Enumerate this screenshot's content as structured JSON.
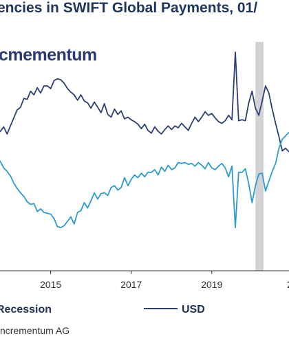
{
  "header": {
    "title": "encies in SWIFT Global Payments, 01/",
    "logo_text": "cmementum"
  },
  "footer": {
    "source": "ncrementum AG"
  },
  "colors": {
    "usd": "#2b3f73",
    "eur": "#2b9bd0",
    "recession": "#d3d3d6",
    "axis": "#333333",
    "title": "#1f3560"
  },
  "chart_data": {
    "type": "line",
    "title": "",
    "xlabel": "",
    "ylabel": "",
    "x_ticks": [
      "2015",
      "2017",
      "2019",
      "20"
    ],
    "xlim": [
      "2013-06",
      "2020-12"
    ],
    "ylim": [
      25,
      50
    ],
    "grid": false,
    "legend": [
      {
        "label": "Recession",
        "kind": "band"
      },
      {
        "label": "USD",
        "kind": "line"
      }
    ],
    "recession": {
      "start": "2020-02",
      "end": "2020-04"
    },
    "series": [
      {
        "name": "USD",
        "x": [
          "2013-06",
          "2013-07",
          "2013-08",
          "2013-09",
          "2013-10",
          "2013-11",
          "2013-12",
          "2014-01",
          "2014-02",
          "2014-03",
          "2014-04",
          "2014-05",
          "2014-06",
          "2014-07",
          "2014-08",
          "2014-09",
          "2014-10",
          "2014-11",
          "2014-12",
          "2015-01",
          "2015-02",
          "2015-03",
          "2015-04",
          "2015-05",
          "2015-06",
          "2015-07",
          "2015-08",
          "2015-09",
          "2015-10",
          "2015-11",
          "2015-12",
          "2016-01",
          "2016-02",
          "2016-03",
          "2016-04",
          "2016-05",
          "2016-06",
          "2016-07",
          "2016-08",
          "2016-09",
          "2016-10",
          "2016-11",
          "2016-12",
          "2017-01",
          "2017-02",
          "2017-03",
          "2017-04",
          "2017-05",
          "2017-06",
          "2017-07",
          "2017-08",
          "2017-09",
          "2017-10",
          "2017-11",
          "2017-12",
          "2018-01",
          "2018-02",
          "2018-03",
          "2018-04",
          "2018-05",
          "2018-06",
          "2018-07",
          "2018-08",
          "2018-09",
          "2018-10",
          "2018-11",
          "2018-12",
          "2019-01",
          "2019-02",
          "2019-03",
          "2019-04",
          "2019-05",
          "2019-06",
          "2019-07",
          "2019-08",
          "2019-09",
          "2019-10",
          "2019-11",
          "2019-12",
          "2020-01",
          "2020-02",
          "2020-03",
          "2020-04",
          "2020-05",
          "2020-06",
          "2020-07",
          "2020-08",
          "2020-09",
          "2020-10",
          "2020-11",
          "2020-12"
        ],
        "values": [
          39.2,
          39.5,
          38.9,
          40.2,
          40.5,
          41.0,
          40.2,
          41.1,
          42.0,
          42.9,
          43.2,
          44.2,
          44.1,
          45.0,
          44.6,
          45.4,
          44.8,
          45.6,
          45.6,
          45.3,
          46.2,
          46.4,
          46.3,
          45.9,
          45.3,
          44.9,
          44.6,
          44.0,
          44.6,
          43.9,
          43.7,
          43.1,
          43.8,
          43.2,
          42.6,
          43.6,
          42.4,
          42.1,
          43.0,
          42.4,
          42.8,
          41.9,
          42.1,
          41.8,
          41.6,
          41.3,
          40.8,
          41.3,
          40.6,
          40.3,
          41.0,
          40.5,
          40.2,
          40.7,
          41.1,
          40.7,
          41.1,
          40.9,
          41.4,
          41.0,
          40.6,
          41.4,
          42.1,
          41.6,
          42.1,
          42.7,
          42.3,
          42.5,
          42.0,
          41.6,
          41.4,
          41.7,
          42.3,
          41.8,
          49.4,
          41.7,
          41.8,
          41.7,
          43.7,
          45.0,
          43.1,
          42.3,
          43.9,
          45.6,
          44.8,
          43.0,
          41.4,
          39.9,
          38.3,
          38.6,
          38.2
        ]
      },
      {
        "name": "",
        "x": [
          "2013-06",
          "2013-07",
          "2013-08",
          "2013-09",
          "2013-10",
          "2013-11",
          "2013-12",
          "2014-01",
          "2014-02",
          "2014-03",
          "2014-04",
          "2014-05",
          "2014-06",
          "2014-07",
          "2014-08",
          "2014-09",
          "2014-10",
          "2014-11",
          "2014-12",
          "2015-01",
          "2015-02",
          "2015-03",
          "2015-04",
          "2015-05",
          "2015-06",
          "2015-07",
          "2015-08",
          "2015-09",
          "2015-10",
          "2015-11",
          "2015-12",
          "2016-01",
          "2016-02",
          "2016-03",
          "2016-04",
          "2016-05",
          "2016-06",
          "2016-07",
          "2016-08",
          "2016-09",
          "2016-10",
          "2016-11",
          "2016-12",
          "2017-01",
          "2017-02",
          "2017-03",
          "2017-04",
          "2017-05",
          "2017-06",
          "2017-07",
          "2017-08",
          "2017-09",
          "2017-10",
          "2017-11",
          "2017-12",
          "2018-01",
          "2018-02",
          "2018-03",
          "2018-04",
          "2018-05",
          "2018-06",
          "2018-07",
          "2018-08",
          "2018-09",
          "2018-10",
          "2018-11",
          "2018-12",
          "2019-01",
          "2019-02",
          "2019-03",
          "2019-04",
          "2019-05",
          "2019-06",
          "2019-07",
          "2019-08",
          "2019-09",
          "2019-10",
          "2019-11",
          "2019-12",
          "2020-01",
          "2020-02",
          "2020-03",
          "2020-04",
          "2020-05",
          "2020-06",
          "2020-07",
          "2020-08",
          "2020-09",
          "2020-10",
          "2020-11",
          "2020-12"
        ],
        "values": [
          39.9,
          38.8,
          38.4,
          37.6,
          37.1,
          36.4,
          36.0,
          35.5,
          34.7,
          34.1,
          33.6,
          33.2,
          32.6,
          32.3,
          32.4,
          31.5,
          31.8,
          31.4,
          31.3,
          31.2,
          30.7,
          29.8,
          29.7,
          29.9,
          30.4,
          30.9,
          30.1,
          31.4,
          31.6,
          32.5,
          31.9,
          32.7,
          33.6,
          32.9,
          33.5,
          33.6,
          33.3,
          34.2,
          34.4,
          33.9,
          34.2,
          35.3,
          34.4,
          35.1,
          35.6,
          35.3,
          35.8,
          35.4,
          35.9,
          35.9,
          36.2,
          35.6,
          36.5,
          36.0,
          36.7,
          36.2,
          36.4,
          37.0,
          36.9,
          37.0,
          36.8,
          36.9,
          36.6,
          37.0,
          36.7,
          36.3,
          37.0,
          36.4,
          36.2,
          36.6,
          36.9,
          36.4,
          35.4,
          36.6,
          29.7,
          35.9,
          35.9,
          36.3,
          34.6,
          32.5,
          34.4,
          35.7,
          35.8,
          33.8,
          34.9,
          36.0,
          36.9,
          38.6,
          39.6,
          40.0,
          40.4
        ]
      }
    ]
  }
}
